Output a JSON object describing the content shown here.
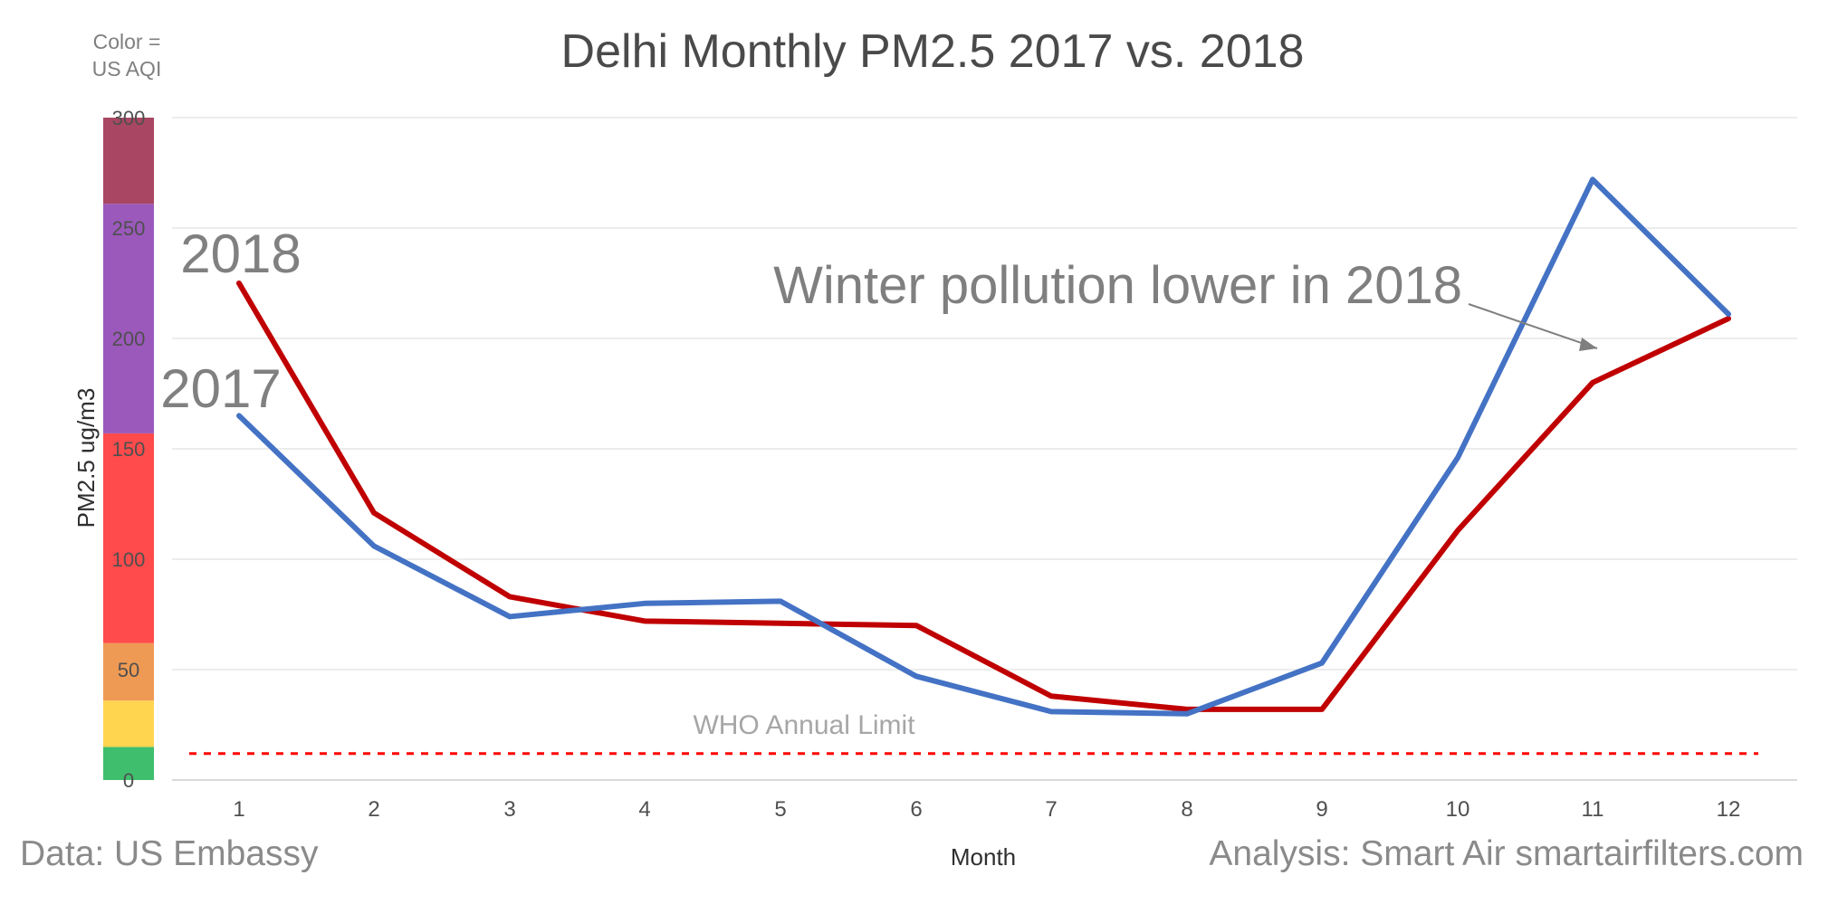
{
  "chart_data": {
    "type": "line",
    "title": "Delhi Monthly PM2.5 2017 vs. 2018",
    "xlabel": "Month",
    "ylabel": "PM2.5 ug/m3",
    "x": [
      1,
      2,
      3,
      4,
      5,
      6,
      7,
      8,
      9,
      10,
      11,
      12
    ],
    "ylim": [
      0,
      300
    ],
    "y_ticks": [
      0,
      50,
      100,
      150,
      200,
      250,
      300
    ],
    "grid": true,
    "series": [
      {
        "name": "2018",
        "color": "#c00000",
        "values": [
          225,
          121,
          83,
          72,
          71,
          70,
          38,
          32,
          32,
          113,
          180,
          209
        ]
      },
      {
        "name": "2017",
        "color": "#4472c4",
        "values": [
          165,
          106,
          74,
          80,
          81,
          47,
          31,
          30,
          53,
          146,
          272,
          211
        ]
      }
    ],
    "reference_line": {
      "label": "WHO Annual Limit",
      "value": 12,
      "color": "#ff0000"
    },
    "annotation": {
      "text": "Winter pollution lower in 2018"
    },
    "aqi_legend": {
      "label_line_1": "Color =",
      "label_line_2": "US AQI",
      "bands": [
        {
          "from": 0,
          "to": 15,
          "color": "#3fbf6d"
        },
        {
          "from": 15,
          "to": 36,
          "color": "#ffd44f"
        },
        {
          "from": 36,
          "to": 62,
          "color": "#ef9a54"
        },
        {
          "from": 62,
          "to": 157,
          "color": "#ff4b4b"
        },
        {
          "from": 157,
          "to": 261,
          "color": "#9b59bb"
        },
        {
          "from": 261,
          "to": 300,
          "color": "#a94663"
        }
      ]
    },
    "footer": {
      "left": "Data: US Embassy",
      "right": "Analysis: Smart Air smartairfilters.com"
    }
  }
}
